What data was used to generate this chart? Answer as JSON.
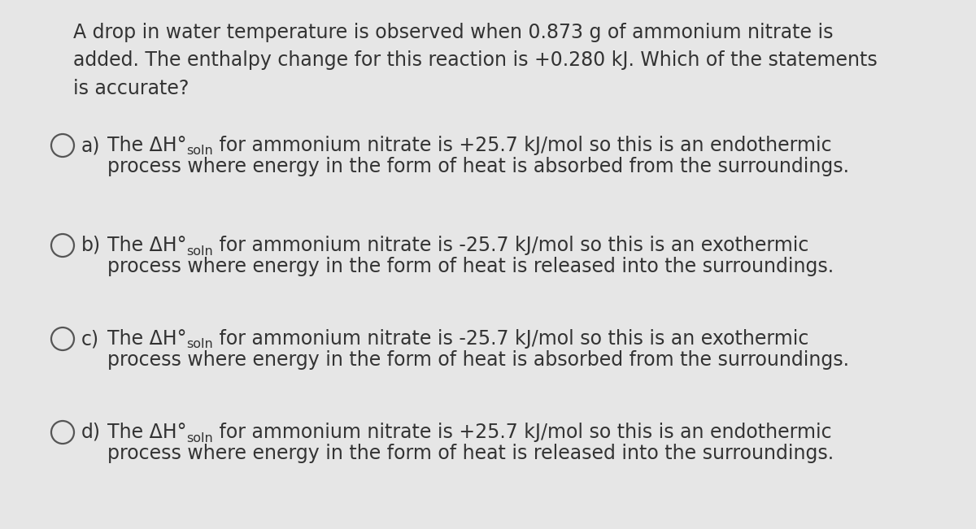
{
  "background_color": "#e6e6e6",
  "text_color": "#333333",
  "question": "A drop in water temperature is observed when 0.873 g of ammonium nitrate is\nadded. The enthalpy change for this reaction is +0.280 kJ. Which of the statements\nis accurate?",
  "options": [
    {
      "label": "a)",
      "line1_prefix": "The ΔH°",
      "line1_sub": "soln",
      "line1_suffix": " for ammonium nitrate is +25.7 kJ/mol so this is an endothermic",
      "line2": "process where energy in the form of heat is absorbed from the surroundings."
    },
    {
      "label": "b)",
      "line1_prefix": "The ΔH°",
      "line1_sub": "soln",
      "line1_suffix": " for ammonium nitrate is -25.7 kJ/mol so this is an exothermic",
      "line2": "process where energy in the form of heat is released into the surroundings."
    },
    {
      "label": "c)",
      "line1_prefix": "The ΔH°",
      "line1_sub": "soln",
      "line1_suffix": " for ammonium nitrate is -25.7 kJ/mol so this is an exothermic",
      "line2": "process where energy in the form of heat is absorbed from the surroundings."
    },
    {
      "label": "d)",
      "line1_prefix": "The ΔH°",
      "line1_sub": "soln",
      "line1_suffix": " for ammonium nitrate is +25.7 kJ/mol so this is an endothermic",
      "line2": "process where energy in the form of heat is released into the surroundings."
    }
  ],
  "question_fontsize": 17,
  "option_fontsize": 17,
  "figsize": [
    12.0,
    6.51
  ],
  "dpi": 100
}
